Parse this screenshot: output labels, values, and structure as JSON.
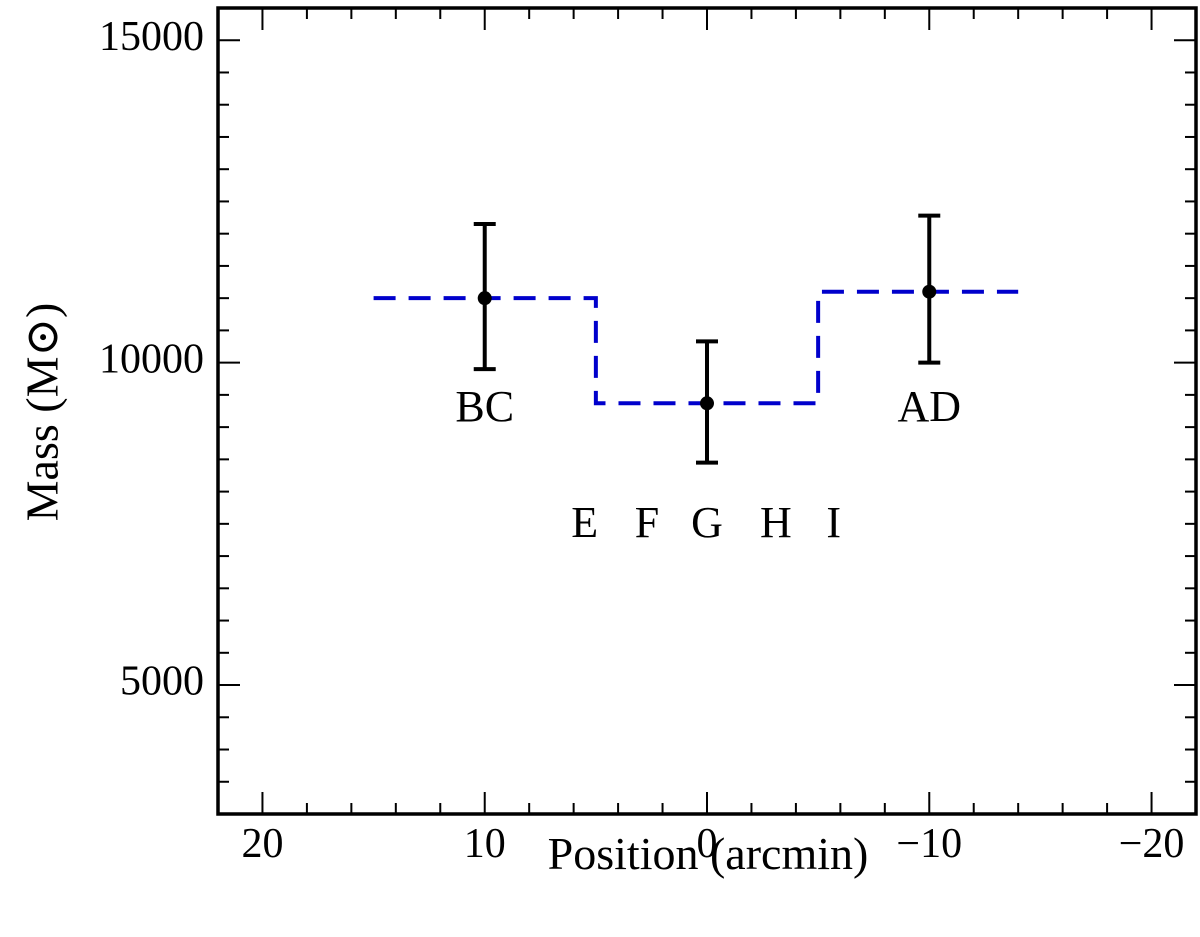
{
  "chart_data": {
    "type": "scatter",
    "title": "",
    "xlabel": "Position (arcmin)",
    "ylabel": "Mass (M⊙)",
    "xlim": [
      22,
      -22
    ],
    "ylim": [
      3000,
      15500
    ],
    "x_reversed": true,
    "grid": false,
    "legend": "none",
    "x_ticks": [
      {
        "value": 20,
        "label": "20"
      },
      {
        "value": 10,
        "label": "10"
      },
      {
        "value": 0,
        "label": "0"
      },
      {
        "value": -10,
        "label": "−10"
      },
      {
        "value": -20,
        "label": "−20"
      }
    ],
    "y_ticks": [
      {
        "value": 5000,
        "label": "5000"
      },
      {
        "value": 10000,
        "label": "10000"
      },
      {
        "value": 15000,
        "label": "15000"
      }
    ],
    "points": [
      {
        "x": 10,
        "y": 11000,
        "err_low": 9900,
        "err_high": 12150,
        "label": "BC"
      },
      {
        "x": 0,
        "y": 9370,
        "err_low": 8450,
        "err_high": 10330,
        "label": "G"
      },
      {
        "x": -10,
        "y": 11100,
        "err_low": 10000,
        "err_high": 12280,
        "label": "AD"
      }
    ],
    "step_line": {
      "color": "#0000cc",
      "style": "dashed",
      "x": [
        15,
        5,
        5,
        -5,
        -5,
        -14
      ],
      "y": [
        11000,
        11000,
        9370,
        9370,
        11100,
        11100
      ]
    },
    "annotations": [
      {
        "text": "BC",
        "x": 10,
        "y": 9250
      },
      {
        "text": "AD",
        "x": -10,
        "y": 9250
      },
      {
        "text": "E",
        "x": 5.5,
        "y": 7450
      },
      {
        "text": "F",
        "x": 2.7,
        "y": 7450
      },
      {
        "text": "G",
        "x": 0,
        "y": 7450
      },
      {
        "text": "H",
        "x": -3.1,
        "y": 7450
      },
      {
        "text": "I",
        "x": -5.7,
        "y": 7450
      }
    ],
    "colors": {
      "axes": "#000000",
      "points": "#000000",
      "step": "#0000cc"
    }
  }
}
